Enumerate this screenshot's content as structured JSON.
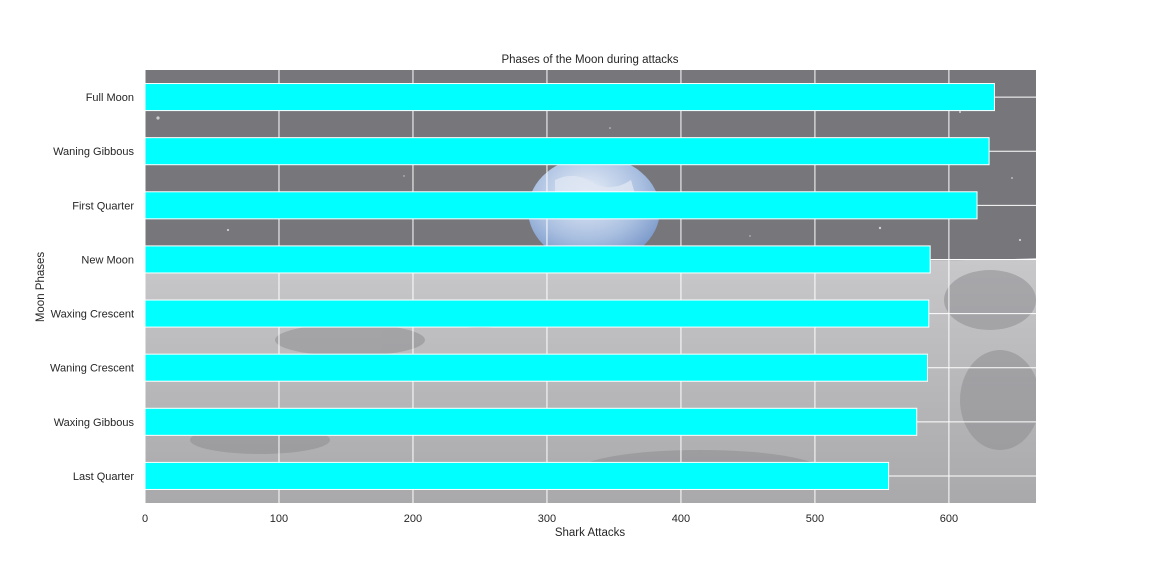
{
  "chart_data": {
    "type": "bar",
    "orientation": "horizontal",
    "title": "Phases of the Moon during attacks",
    "xlabel": "Shark Attacks",
    "ylabel": "Moon Phases",
    "categories": [
      "Full Moon",
      "Waning Gibbous",
      "First Quarter",
      "New Moon",
      "Waxing Crescent",
      "Waning Crescent",
      "Waxing Gibbous",
      "Last Quarter"
    ],
    "values": [
      634,
      630,
      621,
      586,
      585,
      584,
      576,
      555
    ],
    "xlim": [
      0,
      665
    ],
    "xticks": [
      0,
      100,
      200,
      300,
      400,
      500,
      600
    ],
    "grid": true,
    "bar_color": "#00ffff",
    "background": "lunar surface photograph with Earth rising over the horizon"
  }
}
